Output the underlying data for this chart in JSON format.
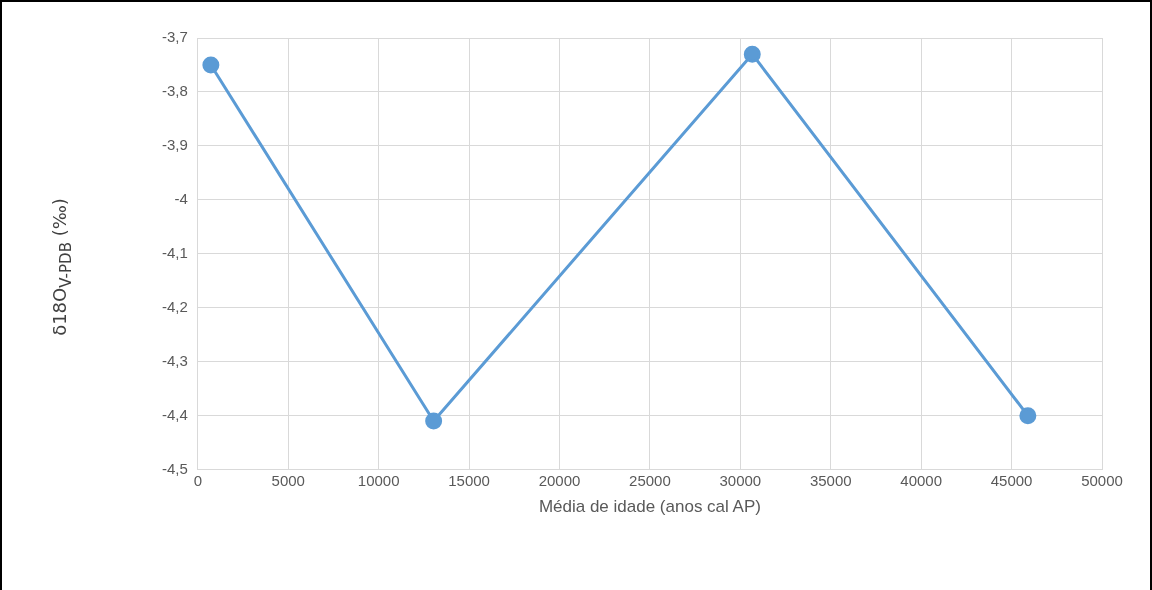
{
  "chart_data": {
    "type": "line",
    "xlabel": "Média de idade (anos cal AP)",
    "ylabel": "δ18O$_{V-PDB}$ (‰)",
    "x": [
      720,
      13040,
      30660,
      45900
    ],
    "series": [
      {
        "color": "#5b9bd5",
        "values": [
          -3.75,
          -4.41,
          -3.73,
          -4.4
        ]
      }
    ],
    "xlim": [
      0,
      50000
    ],
    "xticks": [
      0,
      5000,
      10000,
      15000,
      20000,
      25000,
      30000,
      35000,
      40000,
      45000,
      50000
    ],
    "ylim": [
      -4.5,
      -3.7
    ],
    "yticks": [
      {
        "value": -4.5,
        "label": "-4,5"
      },
      {
        "value": -4.4,
        "label": "-4,4"
      },
      {
        "value": -4.3,
        "label": "-4,3"
      },
      {
        "value": -4.2,
        "label": "-4,2"
      },
      {
        "value": -4.1,
        "label": "-4,1"
      },
      {
        "value": -4,
        "label": "-4"
      },
      {
        "value": -3.9,
        "label": "-3,9"
      },
      {
        "value": -3.8,
        "label": "-3,8"
      },
      {
        "value": -3.7,
        "label": "-3,7"
      }
    ],
    "grid": true,
    "legend": false,
    "marker": "circle",
    "line_style": "solid"
  }
}
